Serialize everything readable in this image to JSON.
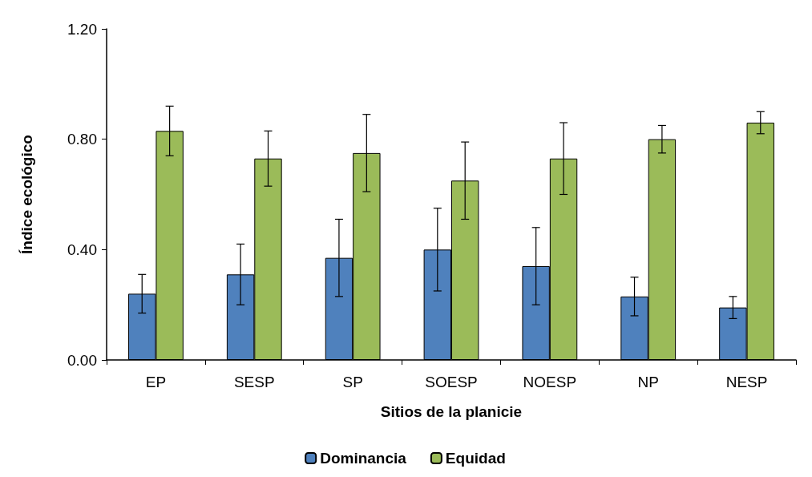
{
  "chart_data": {
    "type": "bar",
    "xlabel": "Sitios de la planicie",
    "ylabel": "Índice ecológico",
    "categories": [
      "EP",
      "SESP",
      "SP",
      "SOESP",
      "NOESP",
      "NP",
      "NESP"
    ],
    "series": [
      {
        "name": "Dominancia",
        "color": "#4f81bd",
        "values": [
          0.24,
          0.31,
          0.37,
          0.4,
          0.34,
          0.23,
          0.19
        ],
        "errors": [
          0.07,
          0.11,
          0.14,
          0.15,
          0.14,
          0.07,
          0.04
        ]
      },
      {
        "name": "Equidad",
        "color": "#9bbb59",
        "values": [
          0.83,
          0.73,
          0.75,
          0.65,
          0.73,
          0.8,
          0.86
        ],
        "errors": [
          0.09,
          0.1,
          0.14,
          0.14,
          0.13,
          0.05,
          0.04
        ]
      }
    ],
    "ylim": [
      0,
      1.2
    ],
    "yticks": [
      {
        "value": 0,
        "label": "0.00"
      },
      {
        "value": 0.4,
        "label": "0.40"
      },
      {
        "value": 0.8,
        "label": "0.80"
      },
      {
        "value": 1.2,
        "label": "1.20"
      }
    ],
    "grid": false,
    "legend": "bottom"
  }
}
